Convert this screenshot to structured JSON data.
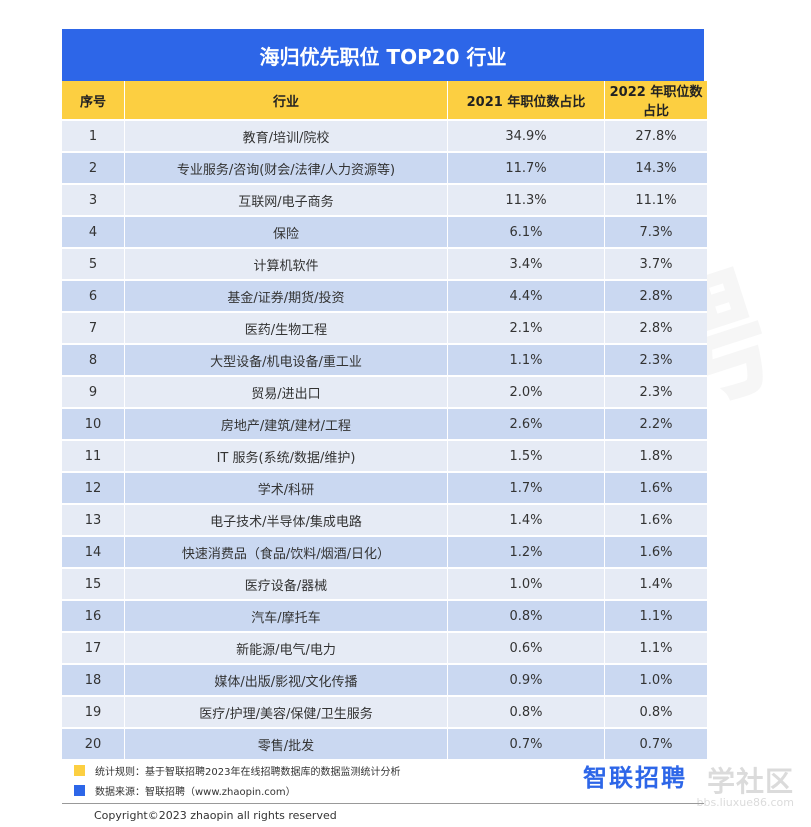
{
  "title": "海归优先职位 TOP20 行业",
  "watermark": "智联招聘",
  "headers": [
    "序号",
    "行业",
    "2021 年职位数占比",
    "2022 年职位数占比"
  ],
  "rows": [
    {
      "rank": "1",
      "industry": "教育/培训/院校",
      "y2021": "34.9%",
      "y2022": "27.8%"
    },
    {
      "rank": "2",
      "industry": "专业服务/咨询(财会/法律/人力资源等)",
      "y2021": "11.7%",
      "y2022": "14.3%"
    },
    {
      "rank": "3",
      "industry": "互联网/电子商务",
      "y2021": "11.3%",
      "y2022": "11.1%"
    },
    {
      "rank": "4",
      "industry": "保险",
      "y2021": "6.1%",
      "y2022": "7.3%"
    },
    {
      "rank": "5",
      "industry": "计算机软件",
      "y2021": "3.4%",
      "y2022": "3.7%"
    },
    {
      "rank": "6",
      "industry": "基金/证券/期货/投资",
      "y2021": "4.4%",
      "y2022": "2.8%"
    },
    {
      "rank": "7",
      "industry": "医药/生物工程",
      "y2021": "2.1%",
      "y2022": "2.8%"
    },
    {
      "rank": "8",
      "industry": "大型设备/机电设备/重工业",
      "y2021": "1.1%",
      "y2022": "2.3%"
    },
    {
      "rank": "9",
      "industry": "贸易/进出口",
      "y2021": "2.0%",
      "y2022": "2.3%"
    },
    {
      "rank": "10",
      "industry": "房地产/建筑/建材/工程",
      "y2021": "2.6%",
      "y2022": "2.2%"
    },
    {
      "rank": "11",
      "industry": "IT 服务(系统/数据/维护)",
      "y2021": "1.5%",
      "y2022": "1.8%"
    },
    {
      "rank": "12",
      "industry": "学术/科研",
      "y2021": "1.7%",
      "y2022": "1.6%"
    },
    {
      "rank": "13",
      "industry": "电子技术/半导体/集成电路",
      "y2021": "1.4%",
      "y2022": "1.6%"
    },
    {
      "rank": "14",
      "industry": "快速消费品（食品/饮料/烟酒/日化）",
      "y2021": "1.2%",
      "y2022": "1.6%"
    },
    {
      "rank": "15",
      "industry": "医疗设备/器械",
      "y2021": "1.0%",
      "y2022": "1.4%"
    },
    {
      "rank": "16",
      "industry": "汽车/摩托车",
      "y2021": "0.8%",
      "y2022": "1.1%"
    },
    {
      "rank": "17",
      "industry": "新能源/电气/电力",
      "y2021": "0.6%",
      "y2022": "1.1%"
    },
    {
      "rank": "18",
      "industry": "媒体/出版/影视/文化传播",
      "y2021": "0.9%",
      "y2022": "1.0%"
    },
    {
      "rank": "19",
      "industry": "医疗/护理/美容/保健/卫生服务",
      "y2021": "0.8%",
      "y2022": "0.8%"
    },
    {
      "rank": "20",
      "industry": "零售/批发",
      "y2021": "0.7%",
      "y2022": "0.7%"
    }
  ],
  "notes": {
    "rule": "统计规则：基于智联招聘2023年在线招聘数据库的数据监测统计分析",
    "source": "数据来源：智联招聘（www.zhaopin.com）"
  },
  "logo": "智联招聘",
  "copyright": "Copyright©2023 zhaopin all rights reserved",
  "stamp": {
    "big": "学社区",
    "small": "bbs.liuxue86.com"
  },
  "colors": {
    "title_bg": "#2d66e8",
    "header_bg": "#fccf41",
    "row_light": "#e6ebf5",
    "row_dark": "#cad8f1",
    "note_yellow": "#fccf41",
    "note_blue": "#2d66e8"
  }
}
